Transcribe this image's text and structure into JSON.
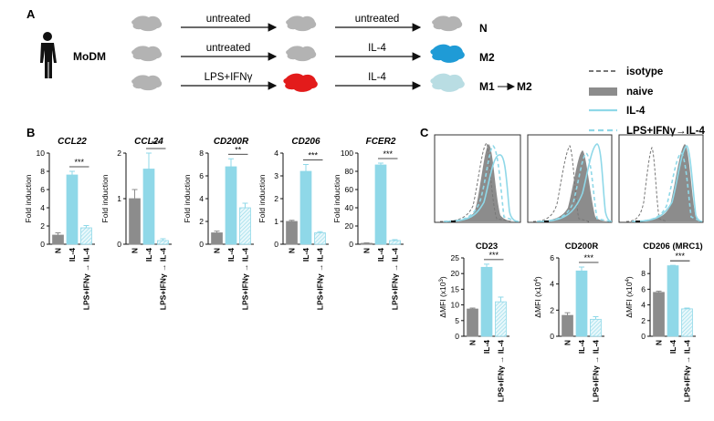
{
  "panel_a": {
    "label": "A",
    "subject": "MoDM",
    "rows": [
      {
        "step1": "untreated",
        "step2": "untreated",
        "outcome": "N",
        "cell1": "#b3b3b3",
        "cell2": "#b3b3b3",
        "cell3": "#b3b3b3"
      },
      {
        "step1": "untreated",
        "step2": "IL-4",
        "outcome": "M2",
        "cell1": "#b3b3b3",
        "cell2": "#b3b3b3",
        "cell3": "#1f9bd6"
      },
      {
        "step1": "LPS+IFNγ",
        "step2": "IL-4",
        "outcome_a": "M1",
        "outcome_b": "M2",
        "cell1": "#b3b3b3",
        "cell2": "#e31b1b",
        "cell3": "#b9dde3"
      }
    ]
  },
  "legend": {
    "items": [
      {
        "label": "isotype",
        "style": "dashed",
        "color": "#777777"
      },
      {
        "label": "naive",
        "style": "fill",
        "color": "#8c8c8c"
      },
      {
        "label": "IL-4",
        "style": "solid",
        "color": "#8fd8e8"
      },
      {
        "label": "LPS+IFNγ→IL-4",
        "style": "dashed",
        "color": "#8fd8e8"
      }
    ]
  },
  "panel_b": {
    "label": "B",
    "ylabel": "Fold induction",
    "categories": [
      "N",
      "IL-4",
      "LPS+IFNγ → IL-4"
    ],
    "charts": [
      {
        "title": "CCL22",
        "ylim": [
          0,
          10
        ],
        "ticks": [
          "0",
          "2",
          "4",
          "6",
          "8",
          "10"
        ],
        "values": [
          1.0,
          7.6,
          1.8
        ],
        "errors": [
          0.25,
          0.4,
          0.25
        ],
        "sig": "***"
      },
      {
        "title": "CCL24",
        "ylim": [
          0,
          2
        ],
        "ticks": [
          "0",
          "1",
          "2"
        ],
        "values": [
          1.0,
          1.65,
          0.08
        ],
        "errors": [
          0.2,
          0.35,
          0.04
        ],
        "sig": "***"
      },
      {
        "title": "CD200R",
        "ylim": [
          0,
          8
        ],
        "ticks": [
          "0",
          "2",
          "4",
          "6",
          "8"
        ],
        "values": [
          1.0,
          6.8,
          3.2
        ],
        "errors": [
          0.15,
          0.7,
          0.4
        ],
        "sig": "**"
      },
      {
        "title": "CD206",
        "ylim": [
          0,
          4
        ],
        "ticks": [
          "0",
          "1",
          "2",
          "3",
          "4"
        ],
        "values": [
          1.0,
          3.2,
          0.5
        ],
        "errors": [
          0.05,
          0.3,
          0.05
        ],
        "sig": "***"
      },
      {
        "title": "FCER2",
        "ylim": [
          0,
          100
        ],
        "ticks": [
          "0",
          "20",
          "40",
          "60",
          "80",
          "100"
        ],
        "values": [
          1.0,
          87,
          4
        ],
        "errors": [
          0.5,
          2,
          1
        ],
        "sig": "***"
      }
    ]
  },
  "panel_c": {
    "label": "C",
    "categories": [
      "N",
      "IL-4",
      "LPS+IFNγ → IL-4"
    ],
    "charts": [
      {
        "title": "CD23",
        "ylabel_main": "ΔMFI (x10",
        "ylabel_exp": "3",
        "ylim": [
          0,
          25
        ],
        "ticks": [
          "0",
          "5",
          "10",
          "15",
          "20",
          "25"
        ],
        "values": [
          8.7,
          22,
          11
        ],
        "errors": [
          0.3,
          1.0,
          1.5
        ],
        "sig": "***"
      },
      {
        "title": "CD200R",
        "ylabel_main": "ΔMFI (x10",
        "ylabel_exp": "4",
        "ylim": [
          0,
          6
        ],
        "ticks": [
          "0",
          "2",
          "4",
          "6"
        ],
        "values": [
          1.6,
          5.0,
          1.3
        ],
        "errors": [
          0.2,
          0.3,
          0.2
        ],
        "sig": "***"
      },
      {
        "title": "CD206 (MRC1)",
        "ylabel_main": "ΔMFI (x10",
        "ylabel_exp": "4",
        "ylim": [
          0,
          10
        ],
        "ticks": [
          "0",
          "2",
          "4",
          "6",
          "8"
        ],
        "values": [
          5.6,
          9.0,
          3.5
        ],
        "errors": [
          0.15,
          0.05,
          0.1
        ],
        "sig": "***"
      }
    ]
  },
  "colors": {
    "naive": "#8c8c8c",
    "il4": "#8fd8e8",
    "lps": "#cfeef5",
    "isotype": "#777777"
  }
}
